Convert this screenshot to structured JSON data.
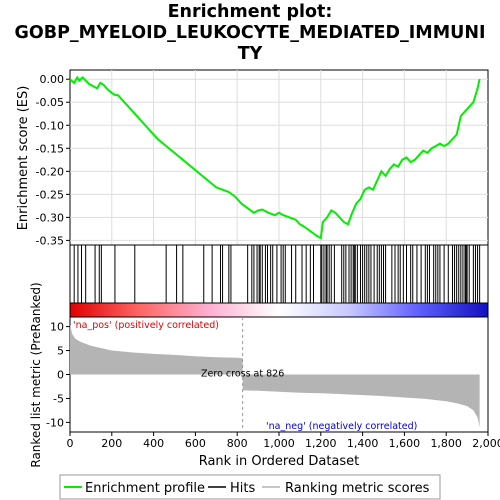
{
  "title_lines": [
    "Enrichment plot:",
    "GOBP_MYELOID_LEUKOCYTE_MEDIATED_IMMUNI",
    "TY"
  ],
  "chart_data": [
    {
      "type": "line",
      "name": "enrichment-profile",
      "ylabel": "Enrichment score (ES)",
      "xlim": [
        0,
        2000
      ],
      "ylim": [
        -0.36,
        0.02
      ],
      "yticks": [
        0.0,
        -0.05,
        -0.1,
        -0.15,
        -0.2,
        -0.25,
        -0.3,
        -0.35
      ],
      "ytick_labels": [
        "0.00",
        "-0.05",
        "-0.10",
        "-0.15",
        "-0.20",
        "-0.25",
        "-0.30",
        "-0.35"
      ],
      "grid": true,
      "color": "#00ee00",
      "x": [
        0,
        20,
        35,
        45,
        60,
        75,
        90,
        110,
        130,
        145,
        160,
        180,
        200,
        215,
        230,
        260,
        300,
        340,
        380,
        420,
        460,
        500,
        540,
        580,
        620,
        660,
        700,
        730,
        760,
        790,
        820,
        850,
        880,
        900,
        920,
        950,
        980,
        1000,
        1020,
        1050,
        1080,
        1100,
        1120,
        1150,
        1180,
        1200,
        1210,
        1230,
        1250,
        1270,
        1290,
        1310,
        1330,
        1350,
        1370,
        1390,
        1410,
        1430,
        1450,
        1470,
        1490,
        1510,
        1530,
        1550,
        1570,
        1590,
        1610,
        1630,
        1650,
        1670,
        1690,
        1710,
        1730,
        1750,
        1770,
        1790,
        1810,
        1830,
        1850,
        1870,
        1890,
        1910,
        1930,
        1950,
        1960
      ],
      "y": [
        0.0,
        -0.008,
        0.004,
        -0.003,
        0.004,
        -0.003,
        -0.01,
        -0.015,
        -0.02,
        -0.008,
        -0.012,
        -0.022,
        -0.03,
        -0.034,
        -0.035,
        -0.05,
        -0.07,
        -0.09,
        -0.11,
        -0.13,
        -0.145,
        -0.16,
        -0.175,
        -0.19,
        -0.205,
        -0.22,
        -0.235,
        -0.24,
        -0.245,
        -0.255,
        -0.27,
        -0.28,
        -0.29,
        -0.285,
        -0.283,
        -0.29,
        -0.295,
        -0.29,
        -0.295,
        -0.3,
        -0.305,
        -0.315,
        -0.32,
        -0.33,
        -0.34,
        -0.345,
        -0.31,
        -0.3,
        -0.285,
        -0.29,
        -0.3,
        -0.31,
        -0.315,
        -0.29,
        -0.27,
        -0.26,
        -0.24,
        -0.235,
        -0.24,
        -0.22,
        -0.2,
        -0.21,
        -0.195,
        -0.185,
        -0.19,
        -0.175,
        -0.17,
        -0.18,
        -0.175,
        -0.165,
        -0.155,
        -0.16,
        -0.15,
        -0.145,
        -0.14,
        -0.145,
        -0.14,
        -0.13,
        -0.12,
        -0.08,
        -0.07,
        -0.06,
        -0.05,
        -0.02,
        0.0
      ]
    },
    {
      "type": "scatter",
      "name": "hits",
      "xlim": [
        0,
        2000
      ],
      "x": [
        20,
        38,
        55,
        75,
        120,
        140,
        150,
        215,
        310,
        460,
        510,
        540,
        640,
        680,
        720,
        730,
        760,
        770,
        850,
        870,
        880,
        895,
        905,
        910,
        920,
        935,
        945,
        960,
        970,
        990,
        1010,
        1020,
        1030,
        1060,
        1080,
        1110,
        1130,
        1150,
        1165,
        1200,
        1205,
        1215,
        1225,
        1230,
        1240,
        1250,
        1265,
        1300,
        1310,
        1320,
        1335,
        1345,
        1355,
        1360,
        1365,
        1375,
        1390,
        1400,
        1410,
        1420,
        1430,
        1440,
        1455,
        1470,
        1480,
        1490,
        1500,
        1510,
        1540,
        1555,
        1570,
        1580,
        1595,
        1610,
        1630,
        1640,
        1660,
        1680,
        1700,
        1710,
        1720,
        1740,
        1750,
        1760,
        1770,
        1790,
        1810,
        1830,
        1840,
        1850,
        1860,
        1870,
        1880,
        1890,
        1895,
        1900,
        1910,
        1930,
        1940,
        1950,
        1960
      ]
    },
    {
      "type": "heatmap",
      "name": "ranking-colorbar",
      "xlim": [
        0,
        2000
      ],
      "zero_cross": 826,
      "gradient": [
        "#e00000",
        "#ff6666",
        "#ffb0d0",
        "#ffffff",
        "#c8c8ff",
        "#6060ff",
        "#1010c0"
      ]
    },
    {
      "type": "area",
      "name": "ranked-metric",
      "xlabel": "Rank in Ordered Dataset",
      "ylabel": "Ranked list metric (PreRanked)",
      "xlim": [
        0,
        2000
      ],
      "ylim": [
        -12,
        12
      ],
      "xticks": [
        0,
        200,
        400,
        600,
        800,
        1000,
        1200,
        1400,
        1600,
        1800,
        2000
      ],
      "xtick_labels": [
        "0",
        "200",
        "400",
        "600",
        "800",
        "1,000",
        "1,200",
        "1,400",
        "1,600",
        "1,800",
        "2,000"
      ],
      "yticks": [
        10,
        5,
        0,
        -5,
        -10
      ],
      "ytick_labels": [
        "10",
        "5",
        "0",
        "-5",
        "-10"
      ],
      "color": "#b4b4b4",
      "x": [
        0,
        10,
        25,
        50,
        100,
        200,
        300,
        400,
        500,
        600,
        700,
        800,
        826,
        827,
        900,
        1000,
        1100,
        1200,
        1300,
        1400,
        1500,
        1600,
        1700,
        1800,
        1850,
        1900,
        1930,
        1950,
        1960
      ],
      "y": [
        10.5,
        8.5,
        7.5,
        6.8,
        6.0,
        5.0,
        4.6,
        4.3,
        4.1,
        3.8,
        3.6,
        3.5,
        3.4,
        -3.3,
        -3.4,
        -3.6,
        -3.8,
        -3.9,
        -4.1,
        -4.3,
        -4.5,
        -4.8,
        -5.1,
        -5.6,
        -6.0,
        -6.6,
        -7.5,
        -9.0,
        -11.0
      ],
      "annotations": {
        "zero_cross": "Zero cross at 826",
        "pos": "'na_pos' (positively correlated)",
        "neg": "'na_neg' (negatively correlated)"
      },
      "pos_color": "#e00000",
      "neg_color": "#0000cc"
    }
  ],
  "legend": {
    "placement": "bottom",
    "items": [
      {
        "label": "Enrichment profile",
        "color": "#00ee00"
      },
      {
        "label": "Hits",
        "color": "#000000"
      },
      {
        "label": "Ranking metric scores",
        "color": "#b4b4b4"
      }
    ]
  }
}
